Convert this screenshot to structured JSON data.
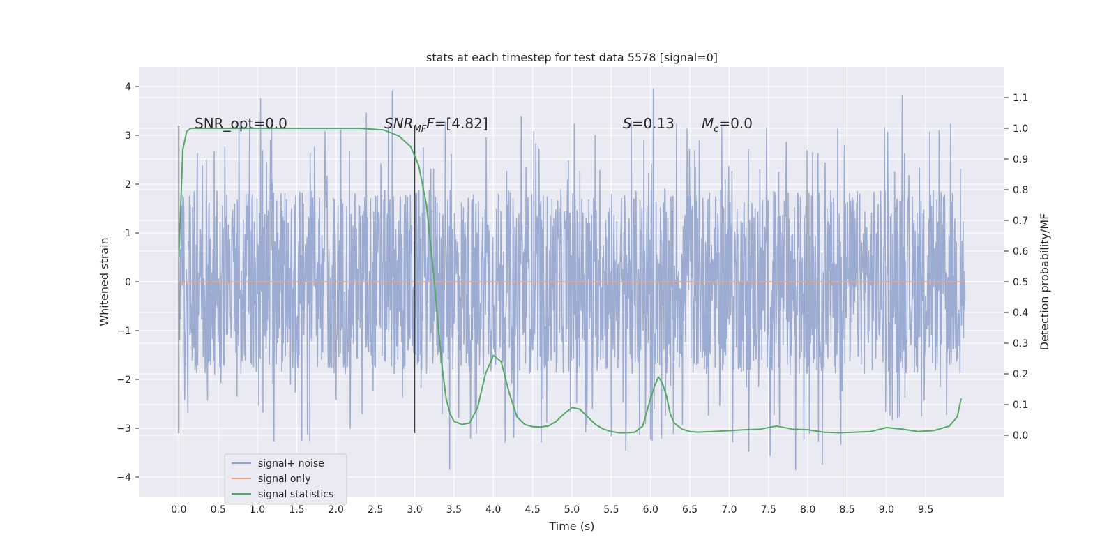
{
  "chart_data": {
    "type": "line",
    "title": "stats at each timestep for test data 5578 [signal=0]",
    "xlabel": "Time (s)",
    "ylabel": "Whitened strain",
    "ylabel_right": "Detection probability/MF",
    "xlim": [
      -0.5,
      10.5
    ],
    "ylim": [
      -4.4,
      4.4
    ],
    "ylim_right": [
      -0.2,
      1.2
    ],
    "x_ticks": [
      "0.0",
      "0.5",
      "1.0",
      "1.5",
      "2.0",
      "2.5",
      "3.0",
      "3.5",
      "4.0",
      "4.5",
      "5.0",
      "5.5",
      "6.0",
      "6.5",
      "7.0",
      "7.5",
      "8.0",
      "8.5",
      "9.0",
      "9.5"
    ],
    "y_ticks_left": [
      "4",
      "3",
      "2",
      "1",
      "0",
      "−1",
      "−2",
      "−3",
      "−4"
    ],
    "y_ticks_right": [
      "1.1",
      "1.0",
      "0.9",
      "0.8",
      "0.7",
      "0.6",
      "0.5",
      "0.4",
      "0.3",
      "0.2",
      "0.1",
      "0.0"
    ],
    "annotations": {
      "snr_opt": "SNR_opt=0.0",
      "snr_mf_main": "SNR",
      "snr_mf_sub": "MF",
      "snr_mf_rest": "=[4.82]",
      "s_main": "S",
      "s_rest": "=0.13",
      "mc_main": "M",
      "mc_sub": "c",
      "mc_rest": "=0.0"
    },
    "vertical_markers": [
      0.0,
      3.0
    ],
    "series": [
      {
        "name": "signal+ noise",
        "color": "#8da0cb",
        "x_range": [
          0.0,
          10.0
        ],
        "envelope": {
          "core_low": -1.9,
          "core_high": 1.9,
          "spike_min": -3.95,
          "spike_max": 4.05
        }
      },
      {
        "name": "signal only",
        "color": "#e8a58b",
        "x": [
          0.0,
          10.0
        ],
        "y": [
          0.0,
          0.0
        ]
      },
      {
        "name": "signal statistics",
        "color": "#55a868",
        "axis": "right",
        "x": [
          0.0,
          0.05,
          0.1,
          0.15,
          0.3,
          0.6,
          1.0,
          1.5,
          2.0,
          2.3,
          2.6,
          2.8,
          2.95,
          3.05,
          3.15,
          3.25,
          3.3,
          3.35,
          3.4,
          3.45,
          3.5,
          3.6,
          3.7,
          3.8,
          3.9,
          4.0,
          4.1,
          4.2,
          4.3,
          4.4,
          4.5,
          4.6,
          4.7,
          4.8,
          4.9,
          5.0,
          5.1,
          5.2,
          5.3,
          5.4,
          5.5,
          5.6,
          5.7,
          5.8,
          5.9,
          6.0,
          6.05,
          6.1,
          6.15,
          6.2,
          6.25,
          6.3,
          6.4,
          6.5,
          6.6,
          6.8,
          7.0,
          7.2,
          7.4,
          7.6,
          7.8,
          8.0,
          8.2,
          8.4,
          8.6,
          8.8,
          9.0,
          9.2,
          9.4,
          9.6,
          9.8,
          9.9,
          9.95
        ],
        "y": [
          0.58,
          0.93,
          0.99,
          1.0,
          1.0,
          1.0,
          1.0,
          1.0,
          1.0,
          1.0,
          0.995,
          0.975,
          0.94,
          0.88,
          0.75,
          0.5,
          0.35,
          0.22,
          0.12,
          0.07,
          0.045,
          0.035,
          0.04,
          0.09,
          0.2,
          0.26,
          0.24,
          0.14,
          0.06,
          0.035,
          0.028,
          0.027,
          0.03,
          0.045,
          0.07,
          0.09,
          0.085,
          0.06,
          0.035,
          0.02,
          0.012,
          0.008,
          0.008,
          0.01,
          0.03,
          0.12,
          0.16,
          0.19,
          0.17,
          0.13,
          0.07,
          0.04,
          0.02,
          0.012,
          0.01,
          0.012,
          0.015,
          0.018,
          0.02,
          0.03,
          0.02,
          0.018,
          0.01,
          0.008,
          0.01,
          0.012,
          0.025,
          0.02,
          0.012,
          0.015,
          0.03,
          0.06,
          0.12
        ]
      }
    ],
    "legend": "lower-left",
    "grid": true
  }
}
